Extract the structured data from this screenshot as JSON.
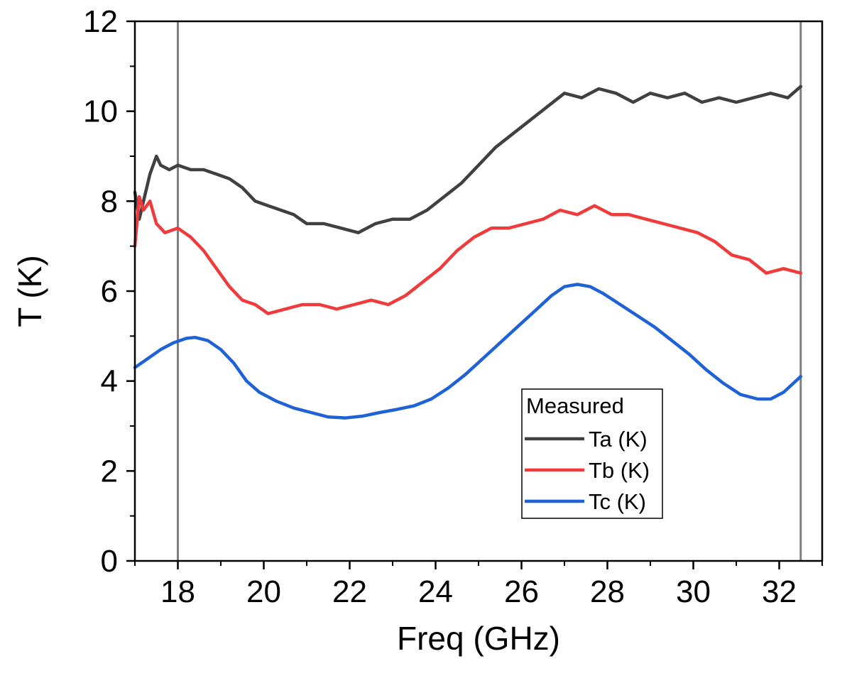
{
  "chart_data": {
    "type": "line",
    "xlabel": "Freq (GHz)",
    "ylabel": "T (K)",
    "xlim": [
      17.0,
      33.0
    ],
    "ylim": [
      0,
      12
    ],
    "x_ticks": [
      18,
      20,
      22,
      24,
      26,
      28,
      30,
      32
    ],
    "y_ticks": [
      0,
      2,
      4,
      6,
      8,
      10,
      12
    ],
    "vertical_lines": [
      18.0,
      32.5
    ],
    "grid": false,
    "legend": {
      "title": "Measured",
      "placement": "lower-right"
    },
    "series": [
      {
        "name": "Ta (K)",
        "color": "#404040",
        "x": [
          17.0,
          17.1,
          17.2,
          17.35,
          17.5,
          17.6,
          17.8,
          18.0,
          18.3,
          18.6,
          18.9,
          19.2,
          19.5,
          19.8,
          20.1,
          20.4,
          20.7,
          21.0,
          21.4,
          21.8,
          22.2,
          22.6,
          23.0,
          23.4,
          23.8,
          24.2,
          24.6,
          25.0,
          25.4,
          25.8,
          26.2,
          26.6,
          27.0,
          27.4,
          27.8,
          28.2,
          28.6,
          29.0,
          29.4,
          29.8,
          30.2,
          30.6,
          31.0,
          31.4,
          31.8,
          32.2,
          32.5
        ],
        "y": [
          8.2,
          7.6,
          8.0,
          8.6,
          9.0,
          8.8,
          8.7,
          8.8,
          8.7,
          8.7,
          8.6,
          8.5,
          8.3,
          8.0,
          7.9,
          7.8,
          7.7,
          7.5,
          7.5,
          7.4,
          7.3,
          7.5,
          7.6,
          7.6,
          7.8,
          8.1,
          8.4,
          8.8,
          9.2,
          9.5,
          9.8,
          10.1,
          10.4,
          10.3,
          10.5,
          10.4,
          10.2,
          10.4,
          10.3,
          10.4,
          10.2,
          10.3,
          10.2,
          10.3,
          10.4,
          10.3,
          10.55
        ]
      },
      {
        "name": "Tb (K)",
        "color": "#ef3b3b",
        "x": [
          17.0,
          17.1,
          17.2,
          17.35,
          17.5,
          17.7,
          18.0,
          18.3,
          18.6,
          18.9,
          19.2,
          19.5,
          19.8,
          20.1,
          20.5,
          20.9,
          21.3,
          21.7,
          22.1,
          22.5,
          22.9,
          23.3,
          23.7,
          24.1,
          24.5,
          24.9,
          25.3,
          25.7,
          26.1,
          26.5,
          26.9,
          27.3,
          27.7,
          28.1,
          28.5,
          28.9,
          29.3,
          29.7,
          30.1,
          30.5,
          30.9,
          31.3,
          31.7,
          32.1,
          32.5
        ],
        "y": [
          7.0,
          8.1,
          7.8,
          8.0,
          7.5,
          7.3,
          7.4,
          7.2,
          6.9,
          6.5,
          6.1,
          5.8,
          5.7,
          5.5,
          5.6,
          5.7,
          5.7,
          5.6,
          5.7,
          5.8,
          5.7,
          5.9,
          6.2,
          6.5,
          6.9,
          7.2,
          7.4,
          7.4,
          7.5,
          7.6,
          7.8,
          7.7,
          7.9,
          7.7,
          7.7,
          7.6,
          7.5,
          7.4,
          7.3,
          7.1,
          6.8,
          6.7,
          6.4,
          6.5,
          6.4
        ]
      },
      {
        "name": "Tc (K)",
        "color": "#1f62d6",
        "x": [
          17.0,
          17.3,
          17.6,
          17.9,
          18.2,
          18.4,
          18.7,
          19.0,
          19.3,
          19.6,
          19.9,
          20.3,
          20.7,
          21.1,
          21.5,
          21.9,
          22.3,
          22.7,
          23.1,
          23.5,
          23.9,
          24.3,
          24.7,
          25.1,
          25.5,
          25.9,
          26.3,
          26.7,
          27.0,
          27.3,
          27.6,
          27.9,
          28.3,
          28.7,
          29.1,
          29.5,
          29.9,
          30.3,
          30.7,
          31.1,
          31.5,
          31.8,
          32.1,
          32.5
        ],
        "y": [
          4.3,
          4.5,
          4.7,
          4.85,
          4.95,
          4.97,
          4.9,
          4.7,
          4.4,
          4.0,
          3.75,
          3.55,
          3.4,
          3.3,
          3.2,
          3.18,
          3.22,
          3.3,
          3.37,
          3.45,
          3.6,
          3.85,
          4.15,
          4.5,
          4.85,
          5.2,
          5.55,
          5.9,
          6.1,
          6.15,
          6.1,
          5.95,
          5.7,
          5.45,
          5.2,
          4.9,
          4.6,
          4.25,
          3.95,
          3.7,
          3.6,
          3.6,
          3.75,
          4.1
        ]
      }
    ]
  }
}
